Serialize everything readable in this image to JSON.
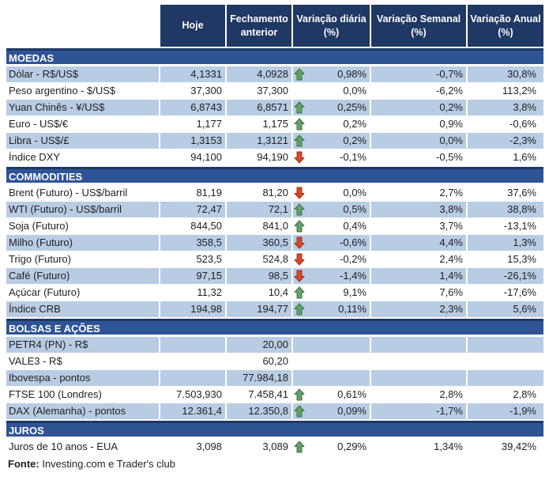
{
  "header": {
    "columns": [
      "Hoje",
      "Fechamento anterior",
      "Variação diária (%)",
      "Variação Semanal (%)",
      "Variação Anual (%)"
    ]
  },
  "colors": {
    "header_background": "#1f3864",
    "section_band_background": "#2f5496",
    "shaded_row_background": "#b8cce4",
    "up_arrow_fill": "#63a06a",
    "up_arrow_border": "#3a7243",
    "down_arrow_fill": "#d44a2a",
    "down_arrow_border": "#99301a"
  },
  "icons": {
    "up": "up-arrow-icon",
    "down": "down-arrow-icon"
  },
  "sections": [
    {
      "title": "MOEDAS",
      "rows": [
        {
          "label": "Dólar - R$/US$",
          "hoje": "4,1331",
          "fechamento": "4,0928",
          "arrow": "up",
          "var_diaria": "0,98%",
          "var_semanal": "-0,7%",
          "var_anual": "30,8%"
        },
        {
          "label": "Peso argentino - $/US$",
          "hoje": "37,300",
          "fechamento": "37,300",
          "arrow": "",
          "var_diaria": "0,0%",
          "var_semanal": "-6,2%",
          "var_anual": "113,2%"
        },
        {
          "label": "Yuan Chinês - ¥/US$",
          "hoje": "6,8743",
          "fechamento": "6,8571",
          "arrow": "up",
          "var_diaria": "0,25%",
          "var_semanal": "0,2%",
          "var_anual": "3,8%"
        },
        {
          "label": "Euro - US$/€",
          "hoje": "1,177",
          "fechamento": "1,175",
          "arrow": "up",
          "var_diaria": "0,2%",
          "var_semanal": "0,9%",
          "var_anual": "-0,6%"
        },
        {
          "label": "Libra - US$/£",
          "hoje": "1,3153",
          "fechamento": "1,3121",
          "arrow": "up",
          "var_diaria": "0,2%",
          "var_semanal": "0,0%",
          "var_anual": "-2,3%"
        },
        {
          "label": "Índice DXY",
          "hoje": "94,100",
          "fechamento": "94,190",
          "arrow": "down",
          "var_diaria": "-0,1%",
          "var_semanal": "-0,5%",
          "var_anual": "1,6%"
        }
      ]
    },
    {
      "title": "COMMODITIES",
      "rows": [
        {
          "label": "Brent (Futuro) - US$/barril",
          "hoje": "81,19",
          "fechamento": "81,20",
          "arrow": "down",
          "var_diaria": "0,0%",
          "var_semanal": "2,7%",
          "var_anual": "37,6%"
        },
        {
          "label": "WTI (Futuro) - US$/barril",
          "hoje": "72,47",
          "fechamento": "72,1",
          "arrow": "up",
          "var_diaria": "0,5%",
          "var_semanal": "3,8%",
          "var_anual": "38,8%"
        },
        {
          "label": "Soja (Futuro)",
          "hoje": "844,50",
          "fechamento": "841,0",
          "arrow": "up",
          "var_diaria": "0,4%",
          "var_semanal": "3,7%",
          "var_anual": "-13,1%"
        },
        {
          "label": "Milho (Futuro)",
          "hoje": "358,5",
          "fechamento": "360,5",
          "arrow": "down",
          "var_diaria": "-0,6%",
          "var_semanal": "4,4%",
          "var_anual": "1,3%"
        },
        {
          "label": "Trigo (Futuro)",
          "hoje": "523,5",
          "fechamento": "524,8",
          "arrow": "down",
          "var_diaria": "-0,2%",
          "var_semanal": "2,4%",
          "var_anual": "15,3%"
        },
        {
          "label": "Café (Futuro)",
          "hoje": "97,15",
          "fechamento": "98,5",
          "arrow": "down",
          "var_diaria": "-1,4%",
          "var_semanal": "1,4%",
          "var_anual": "-26,1%"
        },
        {
          "label": "Açúcar (Futuro)",
          "hoje": "11,32",
          "fechamento": "10,4",
          "arrow": "up",
          "var_diaria": "9,1%",
          "var_semanal": "7,6%",
          "var_anual": "-17,6%"
        },
        {
          "label": "Índice CRB",
          "hoje": "194,98",
          "fechamento": "194,77",
          "arrow": "up",
          "var_diaria": "0,11%",
          "var_semanal": "2,3%",
          "var_anual": "5,6%"
        }
      ]
    },
    {
      "title": "BOLSAS E AÇÕES",
      "rows": [
        {
          "label": "PETR4 (PN) - R$",
          "hoje": "",
          "fechamento": "20,00",
          "arrow": "",
          "var_diaria": "",
          "var_semanal": "",
          "var_anual": ""
        },
        {
          "label": "VALE3 - R$",
          "hoje": "",
          "fechamento": "60,20",
          "arrow": "",
          "var_diaria": "",
          "var_semanal": "",
          "var_anual": ""
        },
        {
          "label": "Ibovespa - pontos",
          "hoje": "",
          "fechamento": "77.984,18",
          "arrow": "",
          "var_diaria": "",
          "var_semanal": "",
          "var_anual": ""
        },
        {
          "label": "FTSE 100 (Londres)",
          "hoje": "7.503,930",
          "fechamento": "7.458,41",
          "arrow": "up",
          "var_diaria": "0,61%",
          "var_semanal": "2,8%",
          "var_anual": "2,8%"
        },
        {
          "label": "DAX (Alemanha) - pontos",
          "hoje": "12.361,4",
          "fechamento": "12.350,8",
          "arrow": "up",
          "var_diaria": "0,09%",
          "var_semanal": "-1,7%",
          "var_anual": "-1,9%"
        }
      ]
    },
    {
      "title": "JUROS",
      "rows": [
        {
          "label": "Juros de 10 anos - EUA",
          "hoje": "3,098",
          "fechamento": "3,089",
          "arrow": "up",
          "var_diaria": "0,29%",
          "var_semanal": "1,34%",
          "var_anual": "39,42%"
        }
      ]
    }
  ],
  "footer": {
    "source_label": "Fonte:",
    "source_text": "Investing.com e Trader's club"
  }
}
